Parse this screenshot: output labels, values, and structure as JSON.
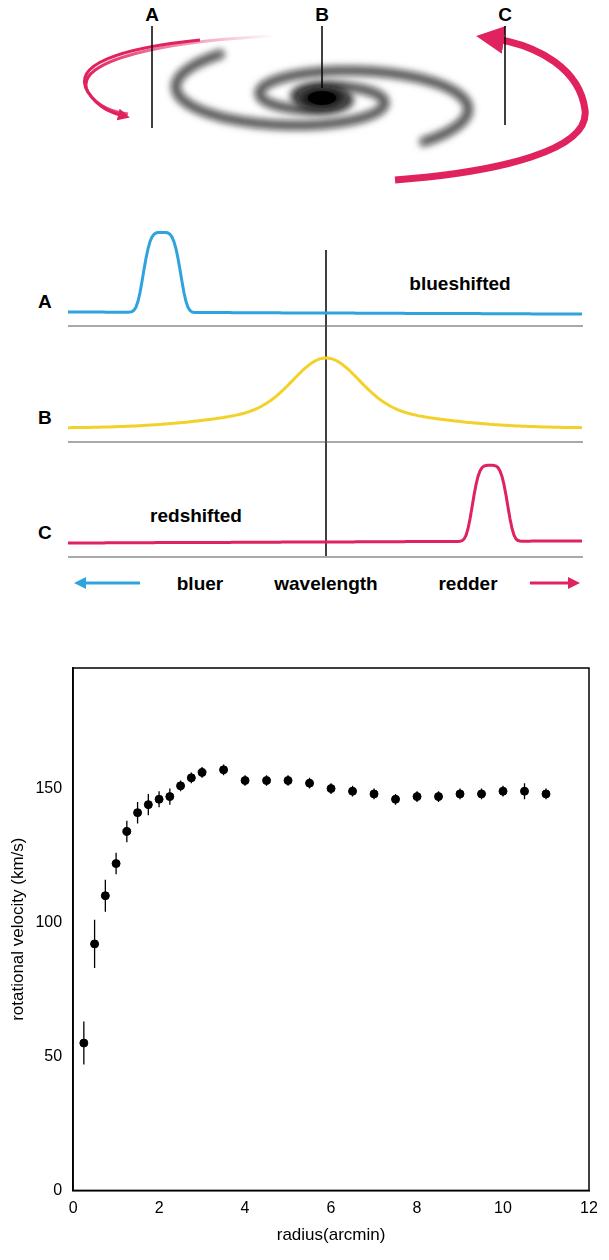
{
  "diagram": {
    "galaxy_labels": [
      "A",
      "B",
      "C"
    ],
    "spectra": [
      {
        "label": "A",
        "note": "blueshifted",
        "color": "#2fa3dd"
      },
      {
        "label": "B",
        "color": "#f2d22a"
      },
      {
        "label": "C",
        "note": "redshifted",
        "color": "#e0225e"
      }
    ],
    "axis": {
      "left": "bluer",
      "center": "wavelength",
      "right": "redder"
    }
  },
  "chart_data": {
    "type": "scatter",
    "xlabel": "radius(arcmin)",
    "ylabel": "rotational velocity (km/s)",
    "x": [
      0.25,
      0.5,
      0.75,
      1.0,
      1.25,
      1.5,
      1.75,
      2.0,
      2.25,
      2.5,
      2.75,
      3.0,
      3.5,
      4.0,
      4.5,
      5.0,
      5.5,
      6.0,
      6.5,
      7.0,
      7.5,
      8.0,
      8.5,
      9.0,
      9.5,
      10.0,
      10.5,
      11.0
    ],
    "values": [
      55,
      92,
      110,
      122,
      134,
      141,
      144,
      146,
      147,
      151,
      154,
      156,
      157,
      153,
      153,
      153,
      152,
      150,
      149,
      148,
      146,
      147,
      147,
      148,
      148,
      149,
      149,
      148
    ],
    "errors": [
      8,
      9,
      6,
      4,
      4,
      4,
      4,
      3,
      3,
      2,
      2,
      2,
      2,
      2,
      2,
      2,
      2,
      2,
      2,
      2,
      2,
      2,
      2,
      2,
      2,
      2,
      3,
      2
    ],
    "color": "#000000",
    "marker": "circle",
    "xlim": [
      0,
      12
    ],
    "xticks": [
      0,
      2,
      4,
      6,
      8,
      10,
      12
    ],
    "ylim": [
      0,
      195
    ],
    "yticks": [
      0,
      50,
      100,
      150
    ],
    "grid": false
  }
}
